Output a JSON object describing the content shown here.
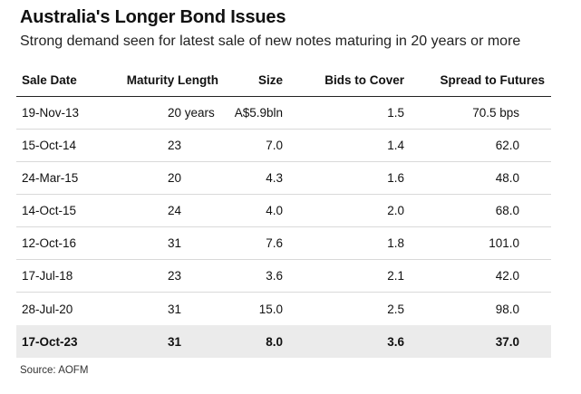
{
  "title": "Australia's Longer Bond Issues",
  "subtitle": "Strong demand seen for latest sale of new notes maturing in 20 years or more",
  "source": "Source: AOFM",
  "chart_data": {
    "type": "table",
    "columns": [
      "Sale Date",
      "Maturity Length",
      "Size",
      "Bids to Cover",
      "Spread to Futures"
    ],
    "rows": [
      {
        "sale_date": "19-Nov-13",
        "maturity": "20 years",
        "size": "A$5.9bln",
        "bids": "1.5",
        "spread": "70.5 bps"
      },
      {
        "sale_date": "15-Oct-14",
        "maturity": "23",
        "size": "7.0",
        "bids": "1.4",
        "spread": "62.0"
      },
      {
        "sale_date": "24-Mar-15",
        "maturity": "20",
        "size": "4.3",
        "bids": "1.6",
        "spread": "48.0"
      },
      {
        "sale_date": "14-Oct-15",
        "maturity": "24",
        "size": "4.0",
        "bids": "2.0",
        "spread": "68.0"
      },
      {
        "sale_date": "12-Oct-16",
        "maturity": "31",
        "size": "7.6",
        "bids": "1.8",
        "spread": "101.0"
      },
      {
        "sale_date": "17-Jul-18",
        "maturity": "23",
        "size": "3.6",
        "bids": "2.1",
        "spread": "42.0"
      },
      {
        "sale_date": "28-Jul-20",
        "maturity": "31",
        "size": "15.0",
        "bids": "2.5",
        "spread": "98.0"
      },
      {
        "sale_date": "17-Oct-23",
        "maturity": "31",
        "size": "8.0",
        "bids": "3.6",
        "spread": "37.0"
      }
    ],
    "highlight_row": 7
  },
  "colors": {
    "text": "#111111",
    "rule": "#d9d9d9",
    "header_rule": "#222222",
    "highlight_bg": "#ebebeb"
  }
}
